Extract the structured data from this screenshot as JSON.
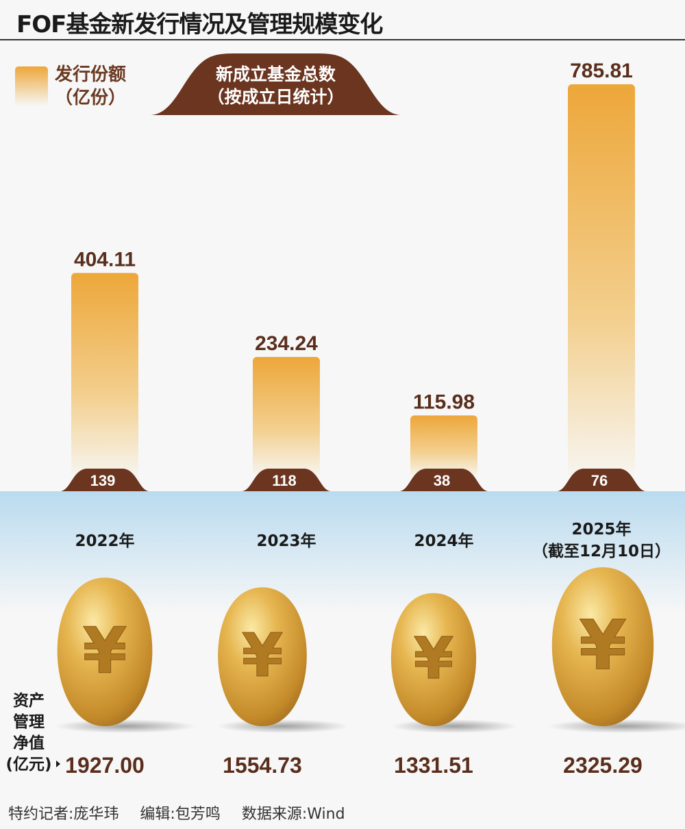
{
  "title": "FOF基金新发行情况及管理规模变化",
  "legend": {
    "issuance_line1": "发行份额",
    "issuance_line2": "（亿份）",
    "count_line1": "新成立基金总数",
    "count_line2": "（按成立日统计）"
  },
  "aum_label": [
    "资产",
    "管理",
    "净值",
    "(亿元)"
  ],
  "colors": {
    "bar_top": "#eda73a",
    "brown": "#6b3520",
    "band": "#b9dbef",
    "gold": "#d9a53a"
  },
  "chart_data": {
    "type": "bar",
    "categories": [
      "2022年",
      "2023年",
      "2024年",
      "2025年"
    ],
    "category_notes": [
      "",
      "",
      "",
      "（截至12月10日）"
    ],
    "series": [
      {
        "name": "发行份额（亿份）",
        "values": [
          404.11,
          234.24,
          115.98,
          785.81
        ]
      },
      {
        "name": "新成立基金总数（按成立日统计）",
        "values": [
          139,
          118,
          38,
          76
        ]
      },
      {
        "name": "资产管理净值（亿元）",
        "values": [
          1927.0,
          1554.73,
          1331.51,
          2325.29
        ]
      }
    ],
    "value_labels": [
      "404.11",
      "234.24",
      "115.98",
      "785.81"
    ],
    "count_labels": [
      "139",
      "118",
      "38",
      "76"
    ],
    "aum_labels": [
      "1927.00",
      "1554.73",
      "1331.51",
      "2325.29"
    ],
    "ylim": [
      0,
      800
    ],
    "grid": false
  },
  "footer": {
    "reporter": "特约记者:庞华玮",
    "editor": "编辑:包芳鸣",
    "source": "数据来源:Wind"
  }
}
